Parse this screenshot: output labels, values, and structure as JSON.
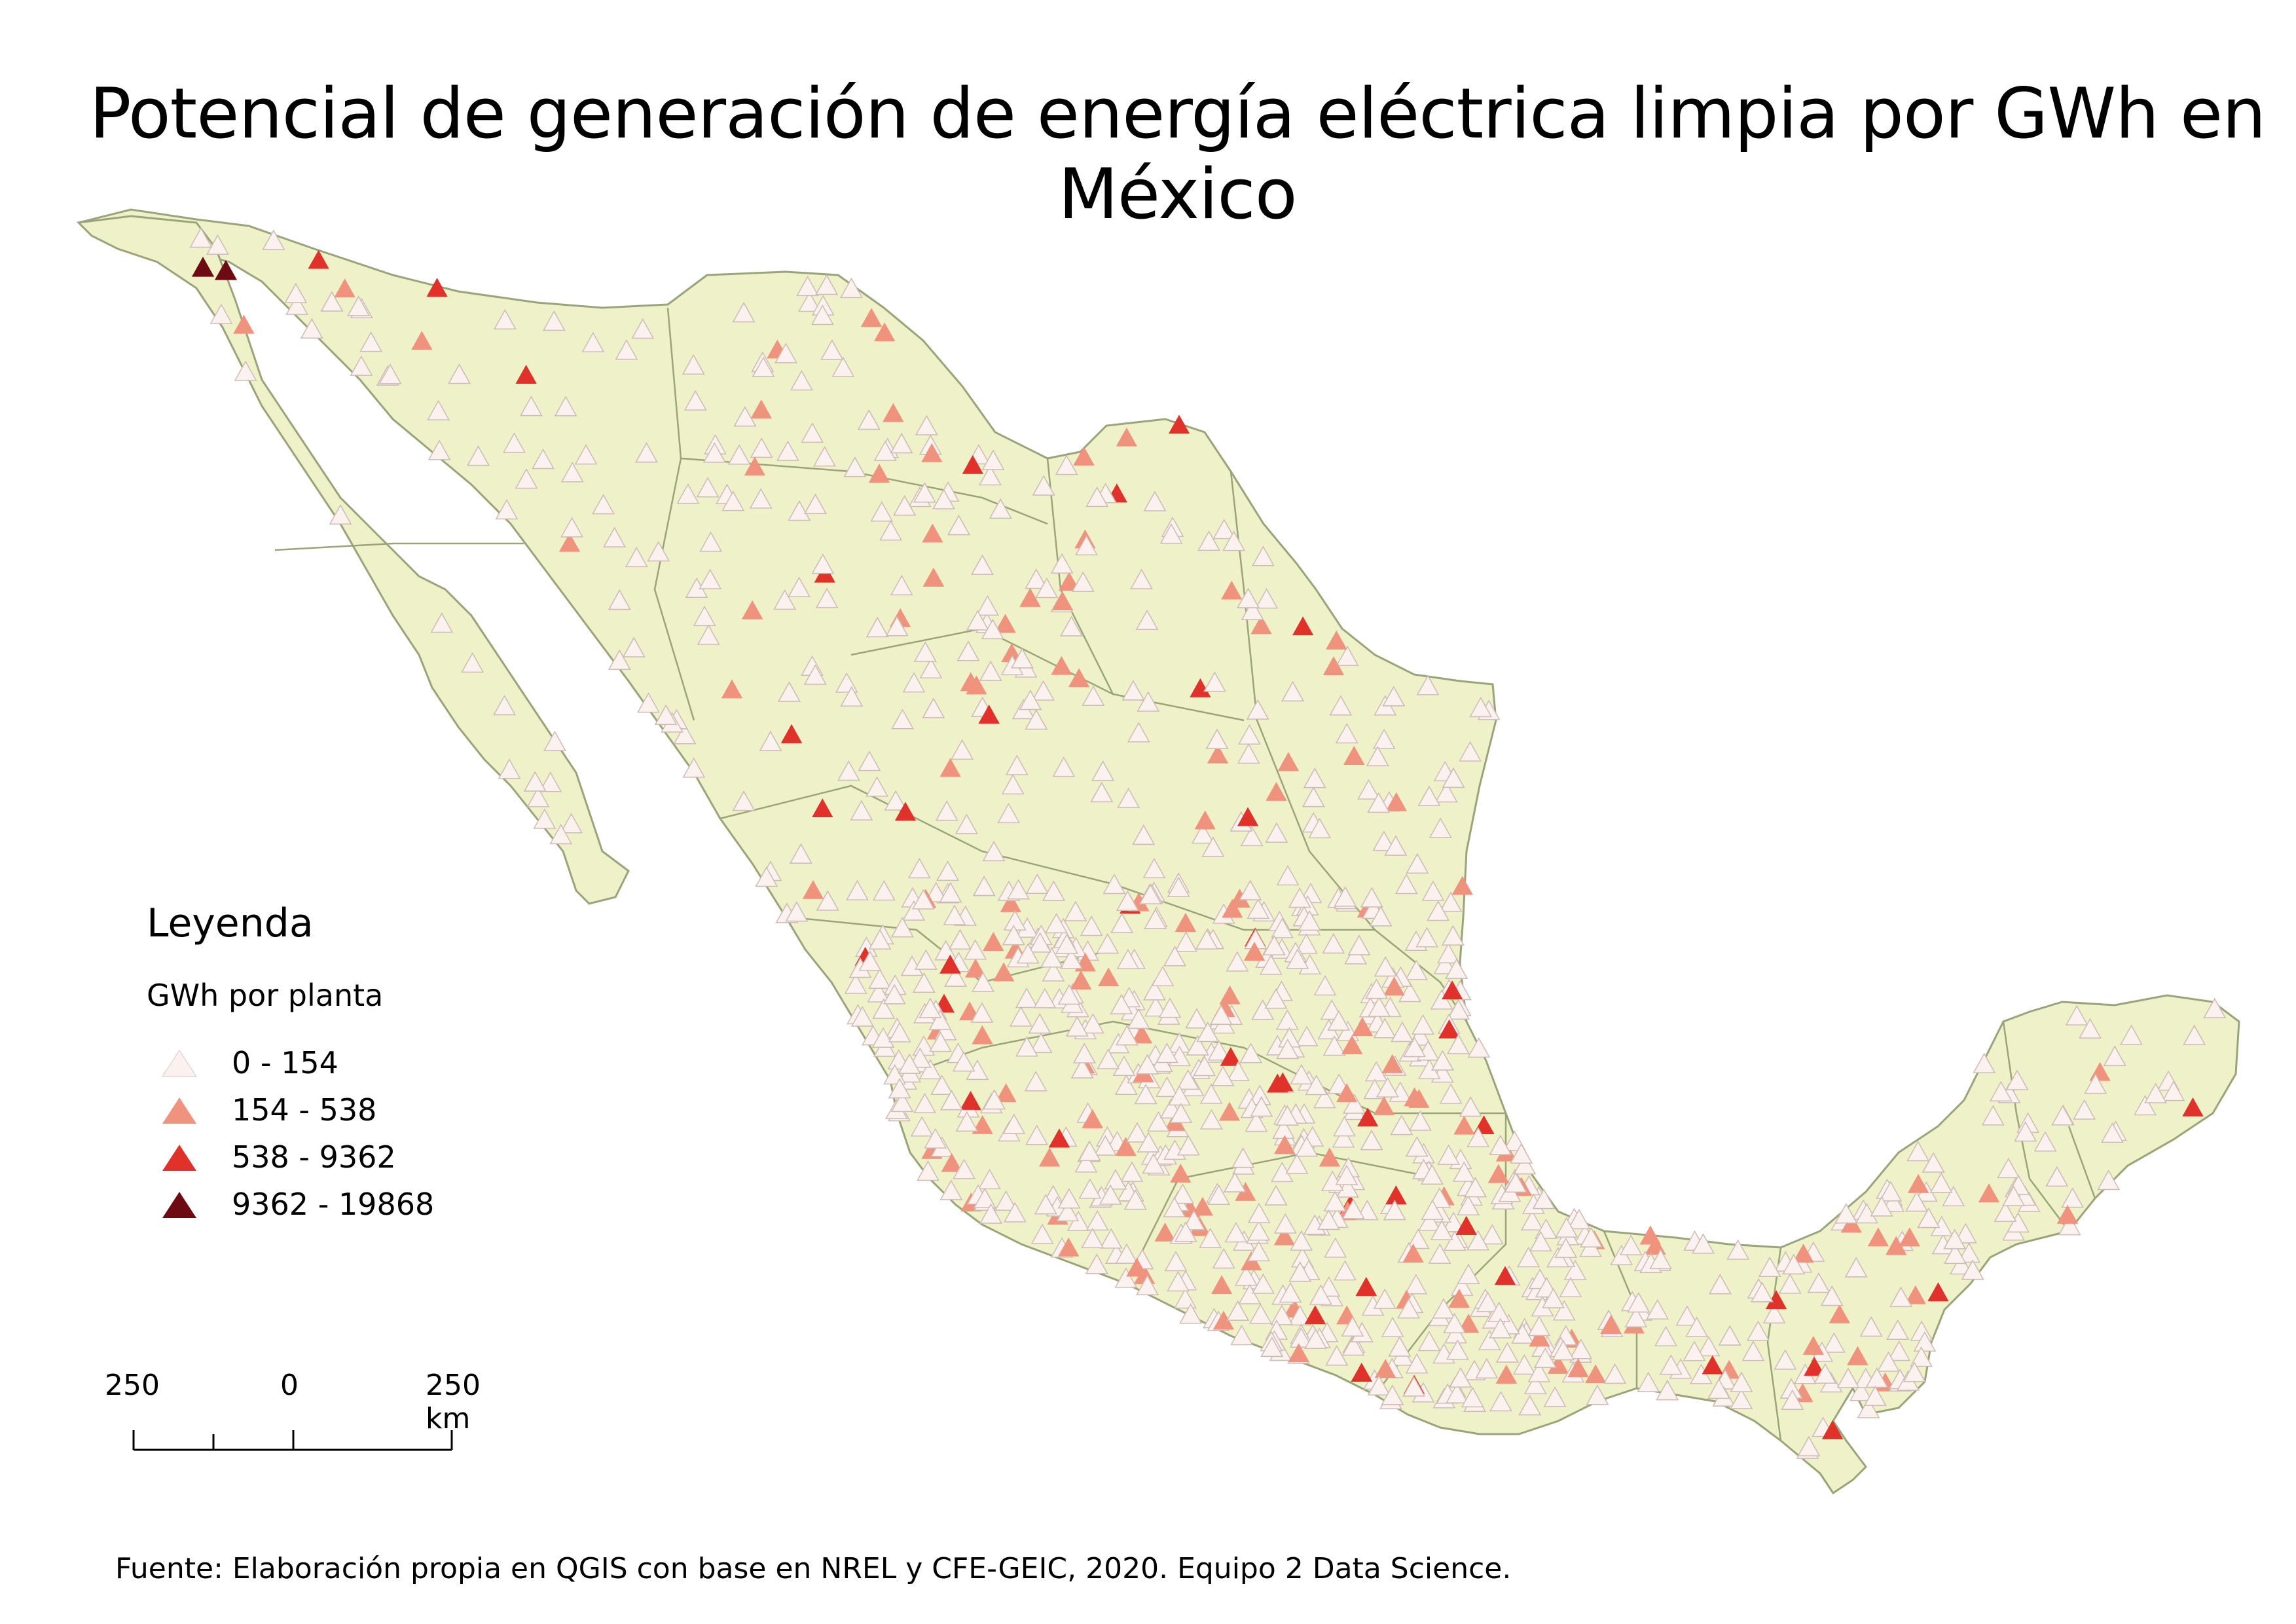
{
  "map": {
    "title": "Potencial de generación de energía eléctrica limpia por GWh en México",
    "region": "México",
    "land_color": "#eff2c8",
    "border_color": "#9aa47a",
    "marker_shape": "triangle",
    "legend": {
      "title": "Leyenda",
      "subtitle": "GWh por planta",
      "classes": [
        {
          "label": "0 - 154",
          "color": "#fbf1ee"
        },
        {
          "label": "154 - 538",
          "color": "#f0937e"
        },
        {
          "label": "538 - 9362",
          "color": "#e0322a"
        },
        {
          "label": "9362 - 19868",
          "color": "#6e0b12"
        }
      ]
    },
    "scale_bar": {
      "labels": [
        "250",
        "0",
        "250 km"
      ]
    },
    "source": "Fuente: Elaboración propia en QGIS con base en NREL y CFE-GEIC, 2020. Equipo 2 Data Science."
  }
}
